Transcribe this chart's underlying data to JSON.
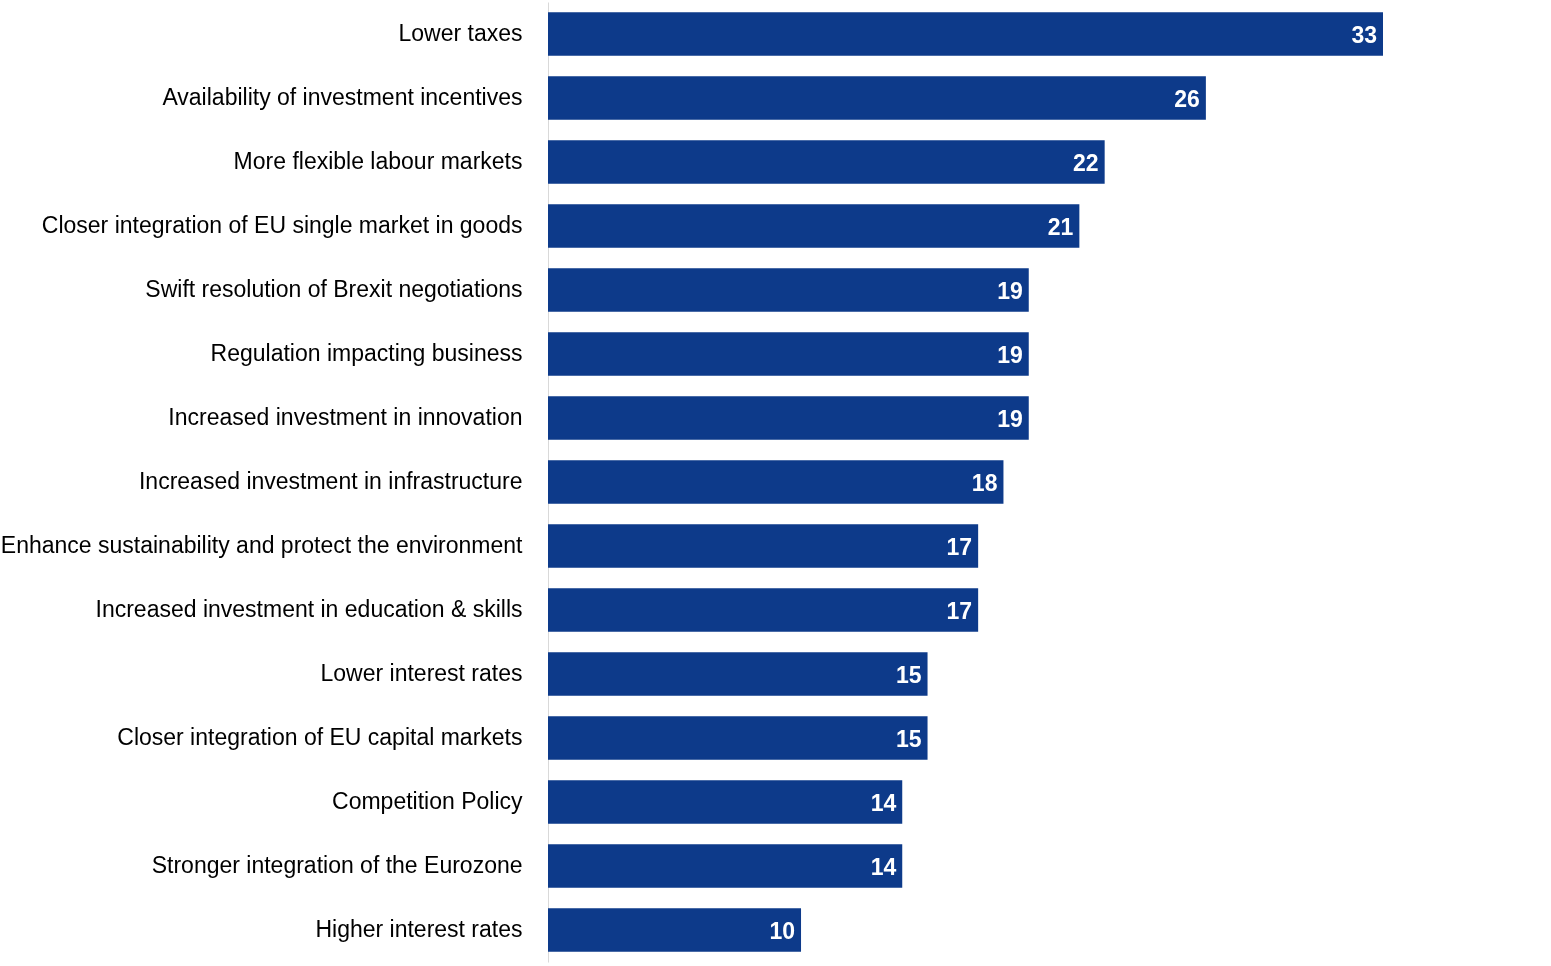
{
  "chart_data": {
    "type": "bar",
    "orientation": "horizontal",
    "data_labels": true,
    "color": "#0d3a8a",
    "categories": [
      "Lower taxes",
      "Availability of investment incentives",
      "More flexible labour markets",
      "Closer integration of EU single market in goods",
      "Swift resolution of Brexit negotiations",
      "Regulation impacting business",
      "Increased investment in innovation",
      "Increased investment in infrastructure",
      "Enhance sustainability and protect the environment",
      "Increased investment in education & skills",
      "Lower interest rates",
      "Closer integration of EU capital markets",
      "Competition Policy",
      "Stronger integration of the Eurozone",
      "Higher interest rates"
    ],
    "values": [
      33,
      26,
      22,
      21,
      19,
      19,
      19,
      18,
      17,
      17,
      15,
      15,
      14,
      14,
      10
    ],
    "xlim": [
      0,
      33
    ]
  }
}
